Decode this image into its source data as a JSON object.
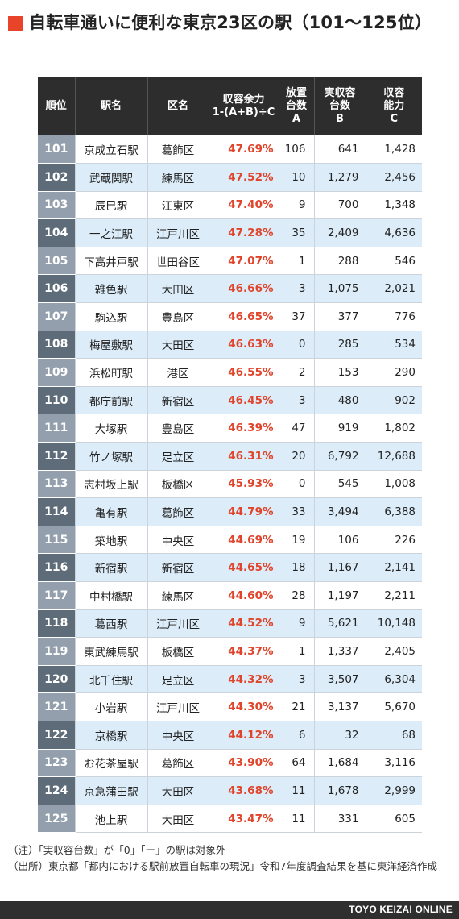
{
  "title": "自転車通いに便利な東京23区の駅（101〜125位）",
  "colors": {
    "accent": "#e8442a",
    "header_bg": "#2d2d2d",
    "rank_dark": "#5e6c7a",
    "rank_light": "#939fac",
    "row_blue": "#dcedf9",
    "ratio_text": "#e0442b"
  },
  "headers": {
    "rank": "順位",
    "station": "駅名",
    "ward": "区名",
    "ratio_1": "収容余力",
    "ratio_2": "1-(A+B)÷C",
    "a_1": "放置",
    "a_2": "台数",
    "a_3": "A",
    "b_1": "実収容",
    "b_2": "台数",
    "b_3": "B",
    "c_1": "収容",
    "c_2": "能力",
    "c_3": "C"
  },
  "rows": [
    {
      "rank": "101",
      "station": "京成立石駅",
      "ward": "葛飾区",
      "ratio": "47.69%",
      "a": "106",
      "b": "641",
      "c": "1,428"
    },
    {
      "rank": "102",
      "station": "武蔵関駅",
      "ward": "練馬区",
      "ratio": "47.52%",
      "a": "10",
      "b": "1,279",
      "c": "2,456"
    },
    {
      "rank": "103",
      "station": "辰巳駅",
      "ward": "江東区",
      "ratio": "47.40%",
      "a": "9",
      "b": "700",
      "c": "1,348"
    },
    {
      "rank": "104",
      "station": "一之江駅",
      "ward": "江戸川区",
      "ratio": "47.28%",
      "a": "35",
      "b": "2,409",
      "c": "4,636"
    },
    {
      "rank": "105",
      "station": "下高井戸駅",
      "ward": "世田谷区",
      "ratio": "47.07%",
      "a": "1",
      "b": "288",
      "c": "546"
    },
    {
      "rank": "106",
      "station": "雑色駅",
      "ward": "大田区",
      "ratio": "46.66%",
      "a": "3",
      "b": "1,075",
      "c": "2,021"
    },
    {
      "rank": "107",
      "station": "駒込駅",
      "ward": "豊島区",
      "ratio": "46.65%",
      "a": "37",
      "b": "377",
      "c": "776"
    },
    {
      "rank": "108",
      "station": "梅屋敷駅",
      "ward": "大田区",
      "ratio": "46.63%",
      "a": "0",
      "b": "285",
      "c": "534"
    },
    {
      "rank": "109",
      "station": "浜松町駅",
      "ward": "港区",
      "ratio": "46.55%",
      "a": "2",
      "b": "153",
      "c": "290"
    },
    {
      "rank": "110",
      "station": "都庁前駅",
      "ward": "新宿区",
      "ratio": "46.45%",
      "a": "3",
      "b": "480",
      "c": "902"
    },
    {
      "rank": "111",
      "station": "大塚駅",
      "ward": "豊島区",
      "ratio": "46.39%",
      "a": "47",
      "b": "919",
      "c": "1,802"
    },
    {
      "rank": "112",
      "station": "竹ノ塚駅",
      "ward": "足立区",
      "ratio": "46.31%",
      "a": "20",
      "b": "6,792",
      "c": "12,688"
    },
    {
      "rank": "113",
      "station": "志村坂上駅",
      "ward": "板橋区",
      "ratio": "45.93%",
      "a": "0",
      "b": "545",
      "c": "1,008"
    },
    {
      "rank": "114",
      "station": "亀有駅",
      "ward": "葛飾区",
      "ratio": "44.79%",
      "a": "33",
      "b": "3,494",
      "c": "6,388"
    },
    {
      "rank": "115",
      "station": "築地駅",
      "ward": "中央区",
      "ratio": "44.69%",
      "a": "19",
      "b": "106",
      "c": "226"
    },
    {
      "rank": "116",
      "station": "新宿駅",
      "ward": "新宿区",
      "ratio": "44.65%",
      "a": "18",
      "b": "1,167",
      "c": "2,141"
    },
    {
      "rank": "117",
      "station": "中村橋駅",
      "ward": "練馬区",
      "ratio": "44.60%",
      "a": "28",
      "b": "1,197",
      "c": "2,211"
    },
    {
      "rank": "118",
      "station": "葛西駅",
      "ward": "江戸川区",
      "ratio": "44.52%",
      "a": "9",
      "b": "5,621",
      "c": "10,148"
    },
    {
      "rank": "119",
      "station": "東武練馬駅",
      "ward": "板橋区",
      "ratio": "44.37%",
      "a": "1",
      "b": "1,337",
      "c": "2,405"
    },
    {
      "rank": "120",
      "station": "北千住駅",
      "ward": "足立区",
      "ratio": "44.32%",
      "a": "3",
      "b": "3,507",
      "c": "6,304"
    },
    {
      "rank": "121",
      "station": "小岩駅",
      "ward": "江戸川区",
      "ratio": "44.30%",
      "a": "21",
      "b": "3,137",
      "c": "5,670"
    },
    {
      "rank": "122",
      "station": "京橋駅",
      "ward": "中央区",
      "ratio": "44.12%",
      "a": "6",
      "b": "32",
      "c": "68"
    },
    {
      "rank": "123",
      "station": "お花茶屋駅",
      "ward": "葛飾区",
      "ratio": "43.90%",
      "a": "64",
      "b": "1,684",
      "c": "3,116"
    },
    {
      "rank": "124",
      "station": "京急蒲田駅",
      "ward": "大田区",
      "ratio": "43.68%",
      "a": "11",
      "b": "1,678",
      "c": "2,999"
    },
    {
      "rank": "125",
      "station": "池上駅",
      "ward": "大田区",
      "ratio": "43.47%",
      "a": "11",
      "b": "331",
      "c": "605"
    }
  ],
  "notes": {
    "note_1": "（注）「実収容台数」が「0」「ー」の駅は対象外",
    "source": "（出所）東京都「都内における駅前放置自転車の現況」令和7年度調査結果を基に東洋経済作成"
  },
  "footer": {
    "brand": "TOYO KEIZAI ONLINE"
  }
}
